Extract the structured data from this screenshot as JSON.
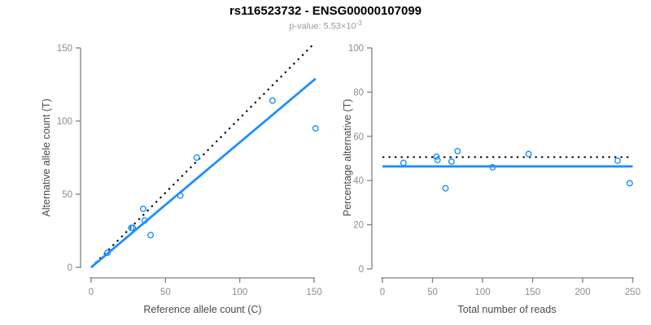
{
  "header": {
    "title": "rs116523732 - ENSG00000107099",
    "pvalue_label": "p-value: 5.53×10",
    "pvalue_exponent": "-3"
  },
  "colors": {
    "accent_blue": "#1E90FF",
    "dotted_black": "#000000",
    "axis_gray": "#808080",
    "tick_label_gray": "#8c8c8c",
    "axis_title_gray": "#4a4a4a"
  },
  "chart_data": [
    {
      "id": "allele-count-scatter",
      "type": "scatter",
      "title": "",
      "xlabel": "Reference allele count (C)",
      "ylabel": "Alternative allele count (T)",
      "xlim": [
        0,
        155
      ],
      "ylim": [
        0,
        155
      ],
      "xticks": [
        0,
        50,
        100,
        150
      ],
      "yticks": [
        0,
        50,
        100,
        150
      ],
      "grid": false,
      "points": [
        [
          11,
          10
        ],
        [
          27,
          27
        ],
        [
          28,
          27
        ],
        [
          35,
          40
        ],
        [
          36,
          32
        ],
        [
          40,
          22
        ],
        [
          60,
          49
        ],
        [
          71,
          75
        ],
        [
          122,
          114
        ],
        [
          151,
          95
        ]
      ],
      "lines": [
        {
          "name": "expected-ratio-line",
          "style": "dotted",
          "color": "#000000",
          "x1": 0,
          "y1": 0,
          "x2": 150,
          "y2": 153
        },
        {
          "name": "fitted-ratio-line",
          "style": "solid",
          "color": "#1E90FF",
          "x1": 0,
          "y1": 0,
          "x2": 151,
          "y2": 129
        }
      ]
    },
    {
      "id": "percentage-vs-reads-scatter",
      "type": "scatter",
      "title": "",
      "xlabel": "Total number of reads",
      "ylabel": "Percentage alternative (T)",
      "xlim": [
        0,
        252
      ],
      "ylim": [
        0,
        100
      ],
      "xticks": [
        0,
        50,
        100,
        150,
        200,
        250
      ],
      "yticks": [
        0,
        20,
        40,
        60,
        80,
        100
      ],
      "grid": false,
      "points": [
        [
          21,
          48
        ],
        [
          54,
          50.8
        ],
        [
          55,
          49.3
        ],
        [
          63,
          36.5
        ],
        [
          69,
          48.6
        ],
        [
          75,
          53.3
        ],
        [
          110,
          46
        ],
        [
          146,
          52
        ],
        [
          235,
          49
        ],
        [
          247,
          38.8
        ]
      ],
      "lines": [
        {
          "name": "expected-percentage-line",
          "style": "dotted",
          "color": "#000000",
          "x1": 0,
          "y1": 50.6,
          "x2": 250,
          "y2": 50.6
        },
        {
          "name": "fitted-percentage-line",
          "style": "solid",
          "color": "#1E90FF",
          "x1": 0,
          "y1": 46.4,
          "x2": 250,
          "y2": 46.4
        }
      ]
    }
  ]
}
